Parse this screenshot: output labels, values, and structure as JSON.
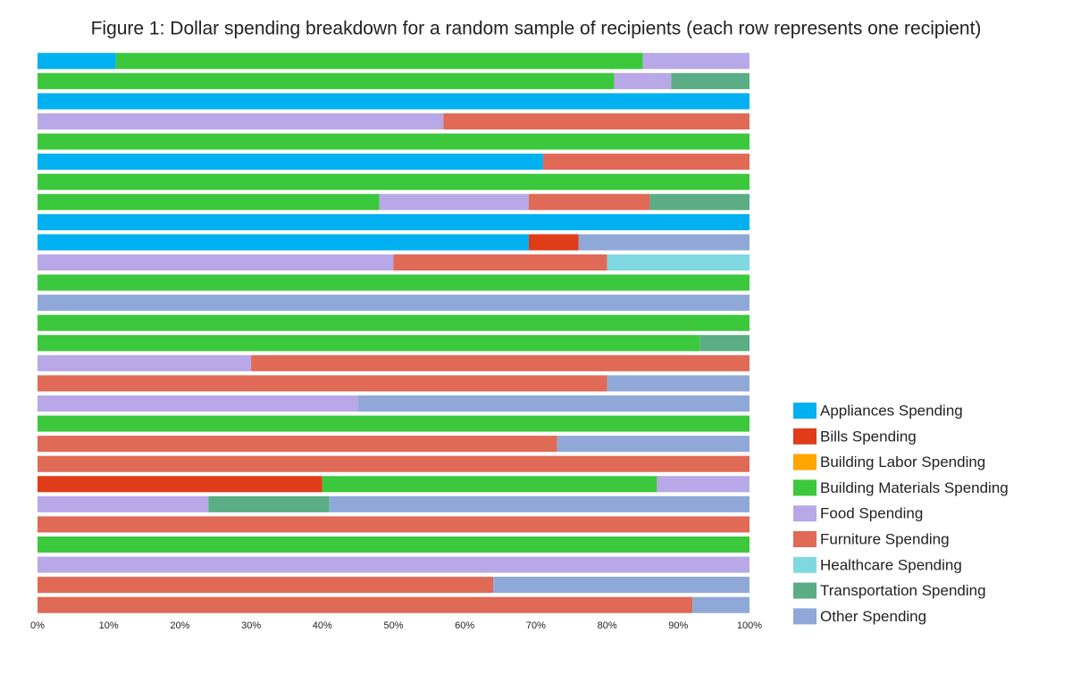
{
  "chart_data": {
    "type": "stacked-barh",
    "title": "Figure 1: Dollar spending breakdown for a random sample of recipients (each row represents one recipient)",
    "categories": [
      null,
      null,
      null,
      null,
      null,
      null,
      null,
      null,
      null,
      null,
      null,
      null,
      null,
      null,
      null,
      null,
      null,
      null,
      null,
      null,
      null,
      null,
      null,
      null,
      null,
      null,
      null,
      null
    ],
    "series": [
      {
        "name": "Appliances Spending",
        "color": "#00b0f0",
        "values": [
          11,
          0,
          100,
          0,
          0,
          71,
          0,
          0,
          100,
          69,
          0,
          0,
          0,
          0,
          0,
          0,
          0,
          0,
          0,
          0,
          0,
          0,
          0,
          0,
          0,
          0,
          0,
          0
        ]
      },
      {
        "name": "Bills Spending",
        "color": "#e03c1a",
        "values": [
          0,
          0,
          0,
          0,
          0,
          0,
          0,
          0,
          0,
          7,
          0,
          0,
          0,
          0,
          0,
          0,
          0,
          0,
          0,
          0,
          0,
          40,
          0,
          0,
          0,
          0,
          0,
          0
        ]
      },
      {
        "name": "Building Labor Spending",
        "color": "#ffa500",
        "values": [
          0,
          0,
          0,
          0,
          0,
          0,
          0,
          0,
          0,
          0,
          0,
          0,
          0,
          0,
          0,
          0,
          0,
          0,
          0,
          0,
          0,
          0,
          0,
          0,
          0,
          0,
          0,
          0
        ]
      },
      {
        "name": "Building Materials Spending",
        "color": "#3cc83c",
        "values": [
          74,
          81,
          0,
          0,
          100,
          0,
          100,
          48,
          0,
          0,
          0,
          100,
          0,
          100,
          93,
          0,
          0,
          0,
          100,
          0,
          0,
          47,
          0,
          0,
          100,
          0,
          0,
          0
        ]
      },
      {
        "name": "Food Spending",
        "color": "#b8a8e8",
        "values": [
          15,
          8,
          0,
          57,
          0,
          0,
          0,
          21,
          0,
          0,
          50,
          0,
          0,
          0,
          0,
          30,
          0,
          45,
          0,
          0,
          0,
          13,
          24,
          0,
          0,
          100,
          0,
          0
        ]
      },
      {
        "name": "Furniture Spending",
        "color": "#e06a55",
        "values": [
          0,
          0,
          0,
          43,
          0,
          29,
          0,
          17,
          0,
          0,
          30,
          0,
          0,
          0,
          0,
          70,
          80,
          0,
          0,
          73,
          100,
          0,
          0,
          100,
          0,
          0,
          64,
          92
        ]
      },
      {
        "name": "Healthcare Spending",
        "color": "#80d8e0",
        "values": [
          0,
          0,
          0,
          0,
          0,
          0,
          0,
          0,
          0,
          0,
          20,
          0,
          0,
          0,
          0,
          0,
          0,
          0,
          0,
          0,
          0,
          0,
          0,
          0,
          0,
          0,
          0,
          0
        ]
      },
      {
        "name": "Transportation Spending",
        "color": "#5aad85",
        "values": [
          0,
          11,
          0,
          0,
          0,
          0,
          0,
          14,
          0,
          0,
          0,
          0,
          0,
          0,
          7,
          0,
          0,
          0,
          0,
          0,
          0,
          0,
          17,
          0,
          0,
          0,
          0,
          0
        ]
      },
      {
        "name": "Other Spending",
        "color": "#8fa8d8",
        "values": [
          0,
          0,
          0,
          0,
          0,
          0,
          0,
          0,
          0,
          24,
          0,
          0,
          100,
          0,
          0,
          0,
          20,
          55,
          0,
          27,
          0,
          0,
          59,
          0,
          0,
          0,
          36,
          8
        ]
      }
    ],
    "xlim": [
      0,
      100
    ],
    "xticks": [
      {
        "value": 0,
        "label": "0%"
      },
      {
        "value": 10,
        "label": "10%"
      },
      {
        "value": 20,
        "label": "20%"
      },
      {
        "value": 30,
        "label": "30%"
      },
      {
        "value": 40,
        "label": "40%"
      },
      {
        "value": 50,
        "label": "50%"
      },
      {
        "value": 60,
        "label": "60%"
      },
      {
        "value": 70,
        "label": "70%"
      },
      {
        "value": 80,
        "label": "80%"
      },
      {
        "value": 90,
        "label": "90%"
      },
      {
        "value": 100,
        "label": "100%"
      }
    ],
    "legend": "lower-right"
  }
}
